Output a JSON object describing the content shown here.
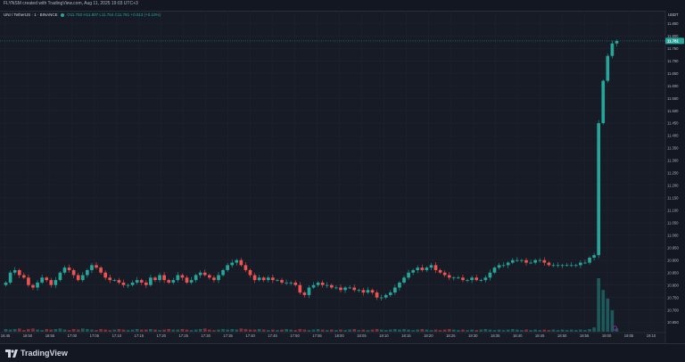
{
  "header": {
    "text": "FLYNSM created with TradingView.com, Aug 11, 2025 19:03 UTC+3"
  },
  "legend": {
    "symbol": "UNI / TetherUS · 1 · BINANCE",
    "ohlc": "O11.782 H11.807 L11.754 C11.781 +0.013 (+0.10%)"
  },
  "brand": {
    "name": "TradingView"
  },
  "colors": {
    "up": "#26a69a",
    "down": "#ef5350",
    "bg": "#171b26",
    "grid": "#1f2330",
    "text": "#b2b5be"
  },
  "chart_data": {
    "type": "candlestick",
    "currency": "USDT",
    "last_price_label": "11.781",
    "ylim": [
      10.62,
      11.88
    ],
    "y_ticks": [
      "10.600",
      "10.650",
      "10.700",
      "10.750",
      "10.800",
      "10.850",
      "10.900",
      "10.950",
      "11.000",
      "11.050",
      "11.100",
      "11.150",
      "11.200",
      "11.250",
      "11.300",
      "11.350",
      "11.400",
      "11.450",
      "11.500",
      "11.550",
      "11.600",
      "11.650",
      "11.700",
      "11.750",
      "11.800",
      "11.850"
    ],
    "x_ticks": [
      "16:45",
      "16:50",
      "16:55",
      "17:00",
      "17:05",
      "17:10",
      "17:15",
      "17:20",
      "17:25",
      "17:30",
      "17:35",
      "17:40",
      "17:45",
      "17:50",
      "17:55",
      "18:00",
      "18:05",
      "18:10",
      "18:15",
      "18:20",
      "18:25",
      "18:30",
      "18:35",
      "18:40",
      "18:45",
      "18:50",
      "18:55",
      "19:00",
      "19:05",
      "19:10"
    ],
    "closes": [
      10.81,
      10.85,
      10.86,
      10.84,
      10.83,
      10.8,
      10.79,
      10.81,
      10.83,
      10.82,
      10.8,
      10.82,
      10.85,
      10.87,
      10.86,
      10.84,
      10.82,
      10.84,
      10.86,
      10.88,
      10.87,
      10.85,
      10.83,
      10.82,
      10.82,
      10.81,
      10.8,
      10.8,
      10.81,
      10.82,
      10.81,
      10.8,
      10.83,
      10.82,
      10.84,
      10.82,
      10.81,
      10.82,
      10.84,
      10.83,
      10.81,
      10.82,
      10.84,
      10.85,
      10.84,
      10.83,
      10.82,
      10.84,
      10.86,
      10.88,
      10.89,
      10.9,
      10.88,
      10.86,
      10.84,
      10.82,
      10.83,
      10.82,
      10.83,
      10.82,
      10.82,
      10.81,
      10.81,
      10.81,
      10.8,
      10.77,
      10.76,
      10.79,
      10.8,
      10.81,
      10.8,
      10.8,
      10.79,
      10.79,
      10.78,
      10.79,
      10.79,
      10.78,
      10.78,
      10.77,
      10.78,
      10.77,
      10.75,
      10.75,
      10.76,
      10.77,
      10.79,
      10.81,
      10.83,
      10.85,
      10.86,
      10.87,
      10.86,
      10.87,
      10.88,
      10.86,
      10.85,
      10.84,
      10.83,
      10.83,
      10.83,
      10.82,
      10.82,
      10.83,
      10.82,
      10.82,
      10.83,
      10.85,
      10.87,
      10.88,
      10.88,
      10.89,
      10.9,
      10.9,
      10.9,
      10.89,
      10.89,
      10.9,
      10.9,
      10.89,
      10.88,
      10.88,
      10.88,
      10.88,
      10.88,
      10.88,
      10.88,
      10.89,
      10.89,
      10.91,
      10.92,
      11.45,
      11.62,
      11.72,
      11.77,
      11.78
    ],
    "volumes": [
      0.05,
      0.04,
      0.05,
      0.06,
      0.03,
      0.05,
      0.06,
      0.04,
      0.03,
      0.05,
      0.04,
      0.05,
      0.06,
      0.04,
      0.03,
      0.05,
      0.04,
      0.06,
      0.05,
      0.04,
      0.03,
      0.05,
      0.04,
      0.03,
      0.04,
      0.05,
      0.04,
      0.03,
      0.04,
      0.05,
      0.04,
      0.04,
      0.05,
      0.04,
      0.03,
      0.04,
      0.05,
      0.04,
      0.04,
      0.05,
      0.04,
      0.03,
      0.04,
      0.05,
      0.06,
      0.04,
      0.03,
      0.04,
      0.05,
      0.04,
      0.05,
      0.04,
      0.06,
      0.05,
      0.04,
      0.04,
      0.05,
      0.04,
      0.03,
      0.04,
      0.03,
      0.04,
      0.05,
      0.04,
      0.03,
      0.05,
      0.04,
      0.03,
      0.04,
      0.05,
      0.04,
      0.03,
      0.04,
      0.03,
      0.04,
      0.03,
      0.04,
      0.05,
      0.03,
      0.04,
      0.03,
      0.04,
      0.05,
      0.04,
      0.03,
      0.04,
      0.05,
      0.04,
      0.05,
      0.04,
      0.03,
      0.04,
      0.05,
      0.04,
      0.03,
      0.04,
      0.03,
      0.04,
      0.05,
      0.04,
      0.03,
      0.04,
      0.03,
      0.04,
      0.03,
      0.04,
      0.05,
      0.04,
      0.03,
      0.04,
      0.03,
      0.04,
      0.05,
      0.04,
      0.03,
      0.04,
      0.03,
      0.04,
      0.03,
      0.04,
      0.03,
      0.04,
      0.03,
      0.04,
      0.03,
      0.04,
      0.03,
      0.04,
      0.03,
      0.05,
      0.08,
      1.0,
      0.78,
      0.62,
      0.4,
      0.06
    ]
  }
}
